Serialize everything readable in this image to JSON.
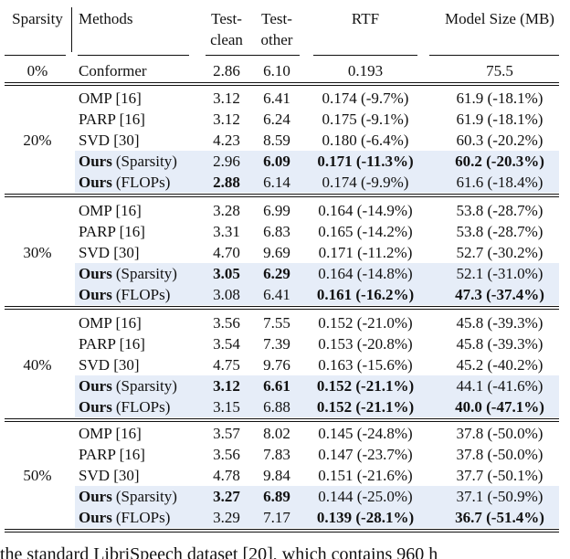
{
  "table": {
    "header": [
      "Sparsity",
      "Methods",
      [
        "Test-",
        "clean"
      ],
      [
        "Test-",
        "other"
      ],
      "RTF",
      "Model Size (MB)"
    ],
    "baseline": {
      "sparsity": "0%",
      "method": "Conformer",
      "cells": [
        "2.86",
        "6.10",
        "0.193",
        "75.5"
      ]
    },
    "groups": [
      {
        "sparsity": "20%",
        "rows": [
          {
            "method": "OMP [16]",
            "cells": [
              "3.12",
              "6.41",
              "0.174 (-9.7%)",
              "61.9 (-18.1%)"
            ],
            "bold": []
          },
          {
            "method": "PARP [16]",
            "cells": [
              "3.12",
              "6.24",
              "0.175 (-9.1%)",
              "61.9 (-18.1%)"
            ],
            "bold": []
          },
          {
            "method": "SVD [30]",
            "cells": [
              "4.23",
              "8.59",
              "0.180 (-6.4%)",
              "60.3 (-20.2%)"
            ],
            "bold": []
          },
          {
            "method_bold": "Ours",
            "method": "(Sparsity)",
            "cells": [
              "2.96",
              "6.09",
              "0.171 (-11.3%)",
              "60.2 (-20.3%)"
            ],
            "bold": [
              1,
              2,
              3
            ],
            "highlight": true
          },
          {
            "method_bold": "Ours",
            "method": "(FLOPs)",
            "cells": [
              "2.88",
              "6.14",
              "0.174 (-9.9%)",
              "61.6 (-18.4%)"
            ],
            "bold": [
              0
            ],
            "highlight": true
          }
        ]
      },
      {
        "sparsity": "30%",
        "rows": [
          {
            "method": "OMP [16]",
            "cells": [
              "3.28",
              "6.99",
              "0.164 (-14.9%)",
              "53.8 (-28.7%)"
            ],
            "bold": []
          },
          {
            "method": "PARP [16]",
            "cells": [
              "3.31",
              "6.83",
              "0.165 (-14.2%)",
              "53.8 (-28.7%)"
            ],
            "bold": []
          },
          {
            "method": "SVD [30]",
            "cells": [
              "4.70",
              "9.69",
              "0.171 (-11.2%)",
              "52.7 (-30.2%)"
            ],
            "bold": []
          },
          {
            "method_bold": "Ours",
            "method": "(Sparsity)",
            "cells": [
              "3.05",
              "6.29",
              "0.164 (-14.8%)",
              "52.1 (-31.0%)"
            ],
            "bold": [
              0,
              1
            ],
            "highlight": true
          },
          {
            "method_bold": "Ours",
            "method": "(FLOPs)",
            "cells": [
              "3.08",
              "6.41",
              "0.161 (-16.2%)",
              "47.3 (-37.4%)"
            ],
            "bold": [
              2,
              3
            ],
            "highlight": true
          }
        ]
      },
      {
        "sparsity": "40%",
        "rows": [
          {
            "method": "OMP [16]",
            "cells": [
              "3.56",
              "7.55",
              "0.152 (-21.0%)",
              "45.8 (-39.3%)"
            ],
            "bold": []
          },
          {
            "method": "PARP [16]",
            "cells": [
              "3.54",
              "7.39",
              "0.153 (-20.8%)",
              "45.8 (-39.3%)"
            ],
            "bold": []
          },
          {
            "method": "SVD [30]",
            "cells": [
              "4.75",
              "9.76",
              "0.163 (-15.6%)",
              "45.2 (-40.2%)"
            ],
            "bold": []
          },
          {
            "method_bold": "Ours",
            "method": "(Sparsity)",
            "cells": [
              "3.12",
              "6.61",
              "0.152 (-21.1%)",
              "44.1 (-41.6%)"
            ],
            "bold": [
              0,
              1,
              2
            ],
            "highlight": true
          },
          {
            "method_bold": "Ours",
            "method": "(FLOPs)",
            "cells": [
              "3.15",
              "6.88",
              "0.152 (-21.1%)",
              "40.0 (-47.1%)"
            ],
            "bold": [
              2,
              3
            ],
            "highlight": true
          }
        ]
      },
      {
        "sparsity": "50%",
        "rows": [
          {
            "method": "OMP [16]",
            "cells": [
              "3.57",
              "8.02",
              "0.145 (-24.8%)",
              "37.8 (-50.0%)"
            ],
            "bold": []
          },
          {
            "method": "PARP [16]",
            "cells": [
              "3.56",
              "7.83",
              "0.147 (-23.7%)",
              "37.8 (-50.0%)"
            ],
            "bold": []
          },
          {
            "method": "SVD [30]",
            "cells": [
              "4.78",
              "9.84",
              "0.151 (-21.6%)",
              "37.7 (-50.1%)"
            ],
            "bold": []
          },
          {
            "method_bold": "Ours",
            "method": "(Sparsity)",
            "cells": [
              "3.27",
              "6.89",
              "0.144 (-25.0%)",
              "37.1 (-50.9%)"
            ],
            "bold": [
              0,
              1
            ],
            "highlight": true
          },
          {
            "method_bold": "Ours",
            "method": "(FLOPs)",
            "cells": [
              "3.29",
              "7.17",
              "0.139 (-28.1%)",
              "36.7 (-51.4%)"
            ],
            "bold": [
              2,
              3
            ],
            "highlight": true
          }
        ]
      }
    ]
  },
  "caption_fragment": "the standard LibriSpeech dataset [20], which contains 960 h"
}
